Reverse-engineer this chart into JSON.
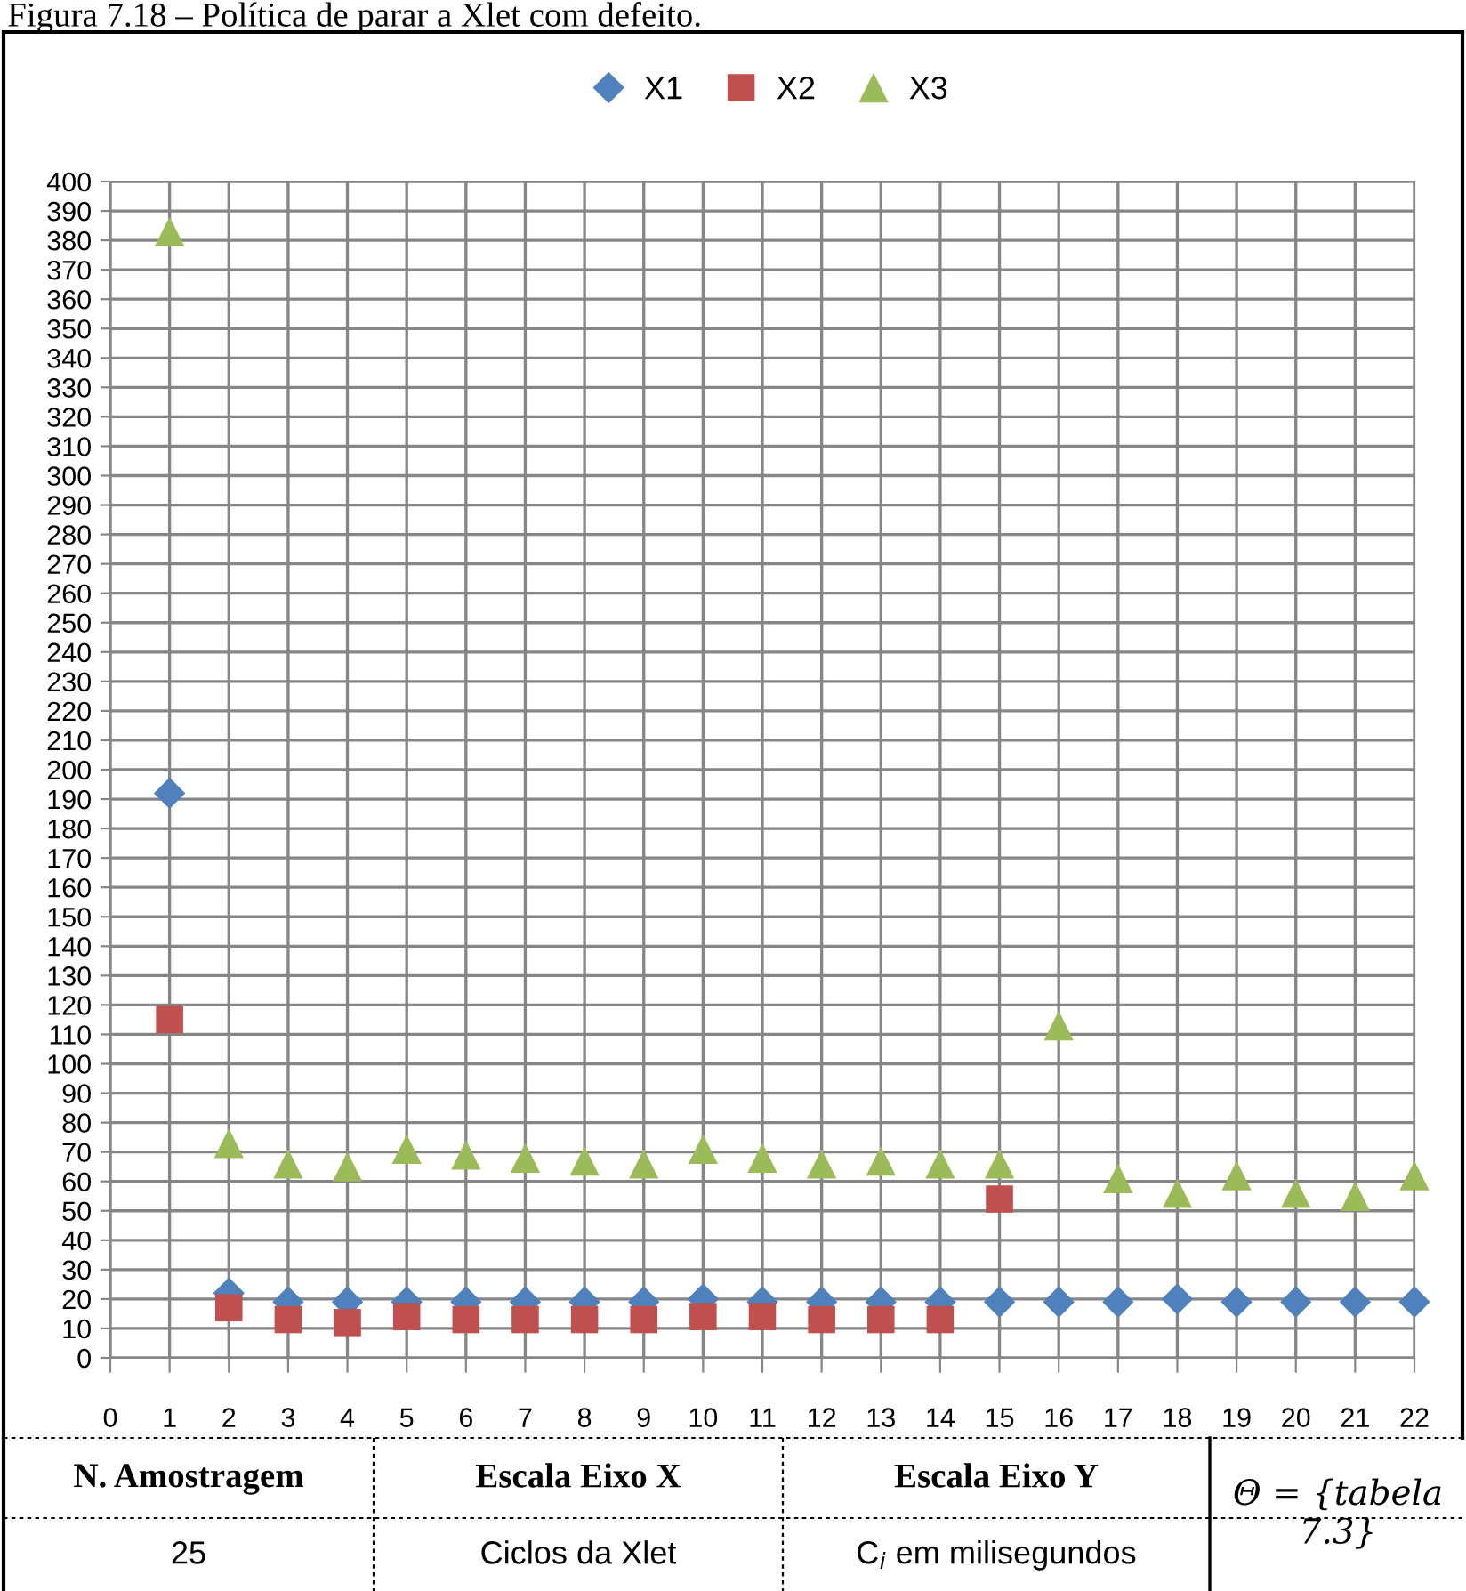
{
  "chart_data": {
    "type": "scatter",
    "title": "Figura 7.18 – Política de parar a Xlet com defeito.",
    "x": [
      1,
      2,
      3,
      4,
      5,
      6,
      7,
      8,
      9,
      10,
      11,
      12,
      13,
      14,
      15,
      16,
      17,
      18,
      19,
      20,
      21,
      22
    ],
    "series": [
      {
        "name": "X1",
        "color": "#4f81bd",
        "marker": "diamond",
        "values": [
          192,
          22,
          19,
          19,
          19,
          19,
          19,
          19,
          19,
          20,
          19,
          19,
          19,
          19,
          19,
          19,
          19,
          20,
          19,
          19,
          19,
          19
        ]
      },
      {
        "name": "X2",
        "color": "#c0504d",
        "marker": "square",
        "values": [
          115,
          17,
          13,
          12,
          14,
          13,
          13,
          13,
          13,
          14,
          14,
          13,
          13,
          13,
          54,
          null,
          null,
          null,
          null,
          null,
          null,
          null
        ]
      },
      {
        "name": "X3",
        "color": "#9bbb59",
        "marker": "triangle",
        "values": [
          383,
          73,
          66,
          65,
          71,
          69,
          68,
          67,
          66,
          71,
          68,
          66,
          67,
          66,
          66,
          113,
          61,
          56,
          62,
          56,
          55,
          62
        ]
      }
    ],
    "xlim": [
      0,
      22
    ],
    "xticks": [
      0,
      1,
      2,
      3,
      4,
      5,
      6,
      7,
      8,
      9,
      10,
      11,
      12,
      13,
      14,
      15,
      16,
      17,
      18,
      19,
      20,
      21,
      22
    ],
    "ylim": [
      0,
      400
    ],
    "yticks": [
      0,
      10,
      20,
      30,
      40,
      50,
      60,
      70,
      80,
      90,
      100,
      110,
      120,
      130,
      140,
      150,
      160,
      170,
      180,
      190,
      200,
      210,
      220,
      230,
      240,
      250,
      260,
      270,
      280,
      290,
      300,
      310,
      320,
      330,
      340,
      350,
      360,
      370,
      380,
      390,
      400
    ],
    "grid": true,
    "legend": "top",
    "annotations": [
      "N. Amostragem",
      "Escala Eixo X",
      "Escala Eixo Y",
      "25",
      "Ciclos da Xlet",
      "C$_{i}$ em milisegundos",
      "Θ = {tabela 7.3}"
    ]
  }
}
